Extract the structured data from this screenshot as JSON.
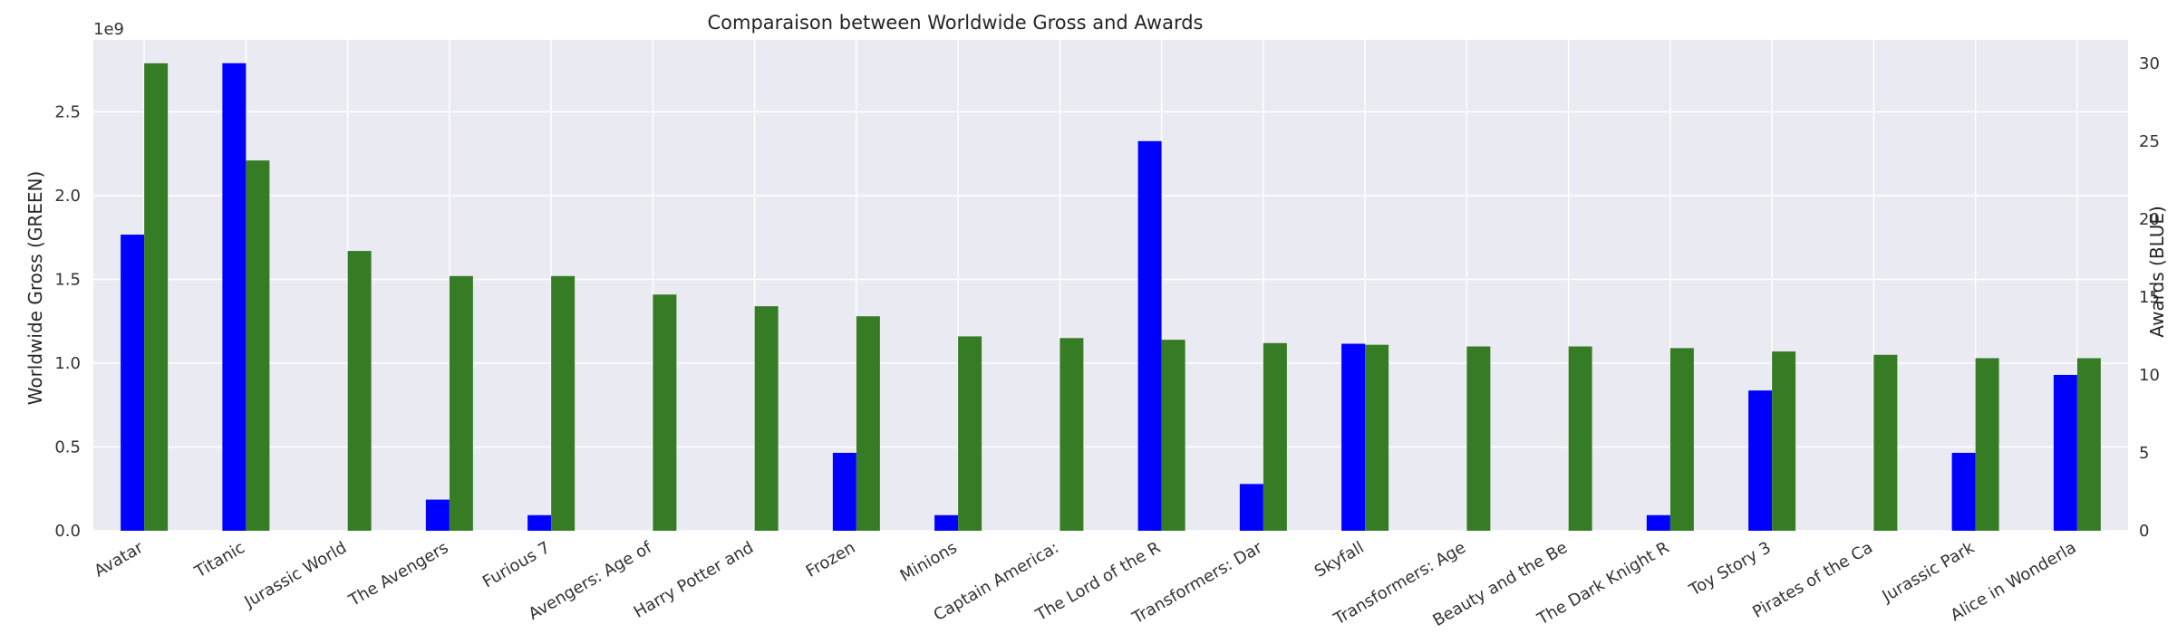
{
  "chart_data": {
    "type": "bar",
    "title": "Comparaison between Worldwide Gross and Awards",
    "categories": [
      "Avatar",
      "Titanic",
      "Jurassic World",
      "The Avengers",
      "Furious 7",
      "Avengers: Age of",
      "Harry Potter and",
      "Frozen",
      "Minions",
      "Captain America:",
      "The Lord of the R",
      "Transformers: Dar",
      "Skyfall",
      "Transformers: Age",
      "Beauty and the Be",
      "The Dark Knight R",
      "Toy Story 3",
      "Pirates of the Ca",
      "Jurassic Park",
      "Alice in Wonderla"
    ],
    "series": [
      {
        "name": "Awards (BLUE)",
        "axis": "right",
        "color": "#0000ff",
        "values": [
          19,
          30,
          0,
          2,
          1,
          0,
          0,
          5,
          1,
          0,
          25,
          3,
          12,
          0,
          0,
          1,
          9,
          0,
          5,
          10
        ]
      },
      {
        "name": "Worldwide Gross (GREEN)",
        "axis": "left",
        "color": "#367c25",
        "values": [
          2790000000.0,
          2210000000.0,
          1670000000.0,
          1520000000.0,
          1520000000.0,
          1410000000.0,
          1340000000.0,
          1280000000.0,
          1160000000.0,
          1150000000.0,
          1140000000.0,
          1120000000.0,
          1110000000.0,
          1100000000.0,
          1100000000.0,
          1090000000.0,
          1070000000.0,
          1050000000.0,
          1030000000.0,
          1030000000.0
        ]
      }
    ],
    "left_axis": {
      "label": "Worldwide Gross (GREEN)",
      "offset_label": "1e9",
      "ylim": [
        0,
        2930000000.0
      ],
      "ticks": [
        0,
        500000000.0,
        1000000000.0,
        1500000000.0,
        2000000000.0,
        2500000000.0
      ],
      "tick_labels": [
        "0.0",
        "0.5",
        "1.0",
        "1.5",
        "2.0",
        "2.5"
      ]
    },
    "right_axis": {
      "label": "Awards (BLUE)",
      "ylim": [
        0,
        31.5
      ],
      "ticks": [
        0,
        5,
        10,
        15,
        20,
        25,
        30
      ],
      "tick_labels": [
        "0",
        "5",
        "10",
        "15",
        "20",
        "25",
        "30"
      ]
    },
    "background_color": "#eaeaf2",
    "grid": true
  }
}
